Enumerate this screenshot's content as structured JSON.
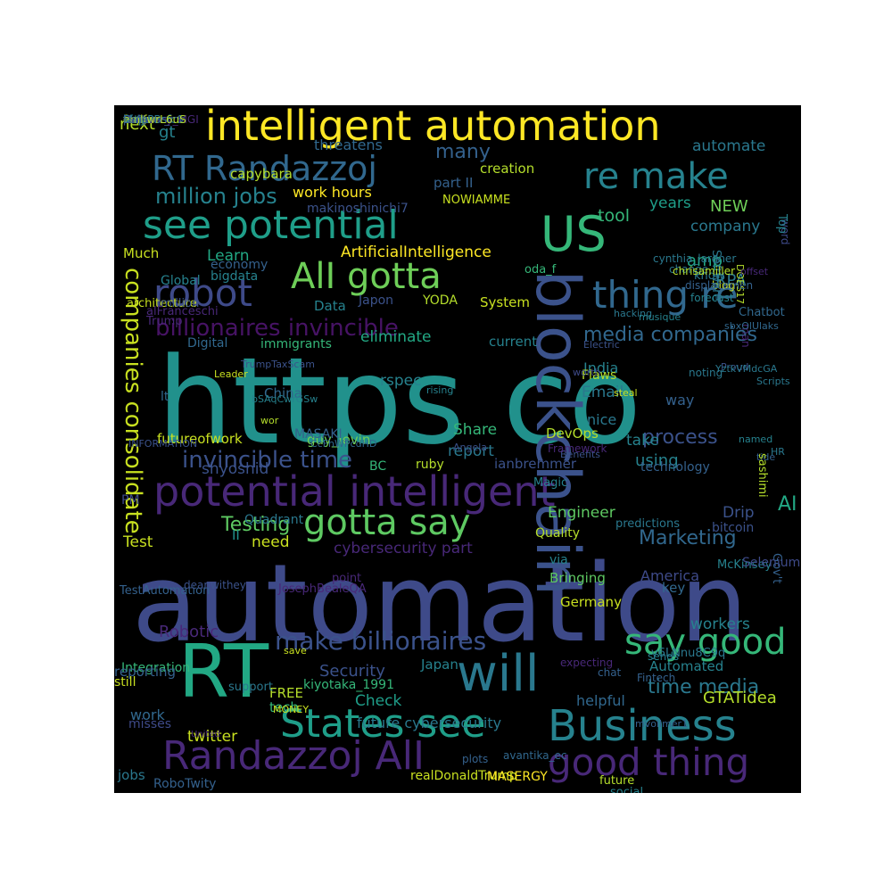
{
  "wordcloud": {
    "words": [
      {
        "text": "https co",
        "color": "#21918c"
      },
      {
        "text": "automation",
        "color": "#3e4a89"
      },
      {
        "text": "potential intelligent",
        "color": "#482878"
      },
      {
        "text": "intelligent automation",
        "color": "#fde725"
      },
      {
        "text": "blockchain",
        "color": "#3b528b"
      },
      {
        "text": "RT Randazzoj",
        "color": "#31688e"
      },
      {
        "text": "re make",
        "color": "#26828e"
      },
      {
        "text": "see potential",
        "color": "#1f9e89"
      },
      {
        "text": "US",
        "color": "#35b779"
      },
      {
        "text": "AlI gotta",
        "color": "#6ece58"
      },
      {
        "text": "robot",
        "color": "#3e4a89"
      },
      {
        "text": "thing re",
        "color": "#31688e"
      },
      {
        "text": "RT",
        "color": "#22a884"
      },
      {
        "text": "will",
        "color": "#2a788e"
      },
      {
        "text": "gotta say",
        "color": "#5ec962"
      },
      {
        "text": "States see",
        "color": "#1f9e89"
      },
      {
        "text": "Business",
        "color": "#26828e"
      },
      {
        "text": "Randazzoj AlI",
        "color": "#482878"
      },
      {
        "text": "good thing",
        "color": "#482878"
      },
      {
        "text": "say good",
        "color": "#35b779"
      },
      {
        "text": "make billionaires",
        "color": "#3b528b"
      },
      {
        "text": "companies consolidate",
        "color": "#c8e020"
      },
      {
        "text": "billionaires invincible",
        "color": "#471365"
      },
      {
        "text": "invincible time",
        "color": "#3b528b"
      },
      {
        "text": "media companies",
        "color": "#31688e"
      },
      {
        "text": "million jobs",
        "color": "#26828e"
      },
      {
        "text": "many",
        "color": "#34618d"
      },
      {
        "text": "process",
        "color": "#3b528b"
      },
      {
        "text": "time media",
        "color": "#2a788e"
      },
      {
        "text": "Marketing",
        "color": "#31688e"
      },
      {
        "text": "Testing",
        "color": "#5ec962"
      },
      {
        "text": "AI",
        "color": "#22a884"
      },
      {
        "text": "next",
        "color": "#b5de2b"
      },
      {
        "text": "gt",
        "color": "#26828e"
      },
      {
        "text": "threatens",
        "color": "#31688e"
      },
      {
        "text": "automate",
        "color": "#2a788e"
      },
      {
        "text": "creation",
        "color": "#b5de2b"
      },
      {
        "text": "capybara",
        "color": "#b5de2b"
      },
      {
        "text": "part II",
        "color": "#34618d"
      },
      {
        "text": "work hours",
        "color": "#fde725"
      },
      {
        "text": "makinoshinichi7",
        "color": "#3b528b"
      },
      {
        "text": "NOWIAMME",
        "color": "#c8e020"
      },
      {
        "text": "tool",
        "color": "#35b779"
      },
      {
        "text": "years",
        "color": "#1f9e89"
      },
      {
        "text": "NEW",
        "color": "#6ece58"
      },
      {
        "text": "company",
        "color": "#2a788e"
      },
      {
        "text": "ArtificialIntelligence",
        "color": "#fde725"
      },
      {
        "text": "Learn",
        "color": "#22a884"
      },
      {
        "text": "Much",
        "color": "#c8e020"
      },
      {
        "text": "economy",
        "color": "#34618d"
      },
      {
        "text": "amp",
        "color": "#22a884"
      },
      {
        "text": "RPA",
        "color": "#2a788e"
      },
      {
        "text": "Global",
        "color": "#26828e"
      },
      {
        "text": "bigdata",
        "color": "#26828e"
      },
      {
        "text": "Data",
        "color": "#26828e"
      },
      {
        "text": "Japon",
        "color": "#3b528b"
      },
      {
        "text": "YODA",
        "color": "#b5de2b"
      },
      {
        "text": "System",
        "color": "#c8e020"
      },
      {
        "text": "eliminate",
        "color": "#22a884"
      },
      {
        "text": "current",
        "color": "#26828e"
      },
      {
        "text": "Digital",
        "color": "#31688e"
      },
      {
        "text": "immigrants",
        "color": "#35b779"
      },
      {
        "text": "rspec",
        "color": "#26828e"
      },
      {
        "text": "China",
        "color": "#31688e"
      },
      {
        "text": "lt",
        "color": "#31688e"
      },
      {
        "text": "Email",
        "color": "#2a788e"
      },
      {
        "text": "nice",
        "color": "#2a788e"
      },
      {
        "text": "India",
        "color": "#26828e"
      },
      {
        "text": "Flaws",
        "color": "#b5de2b"
      },
      {
        "text": "way",
        "color": "#34618d"
      },
      {
        "text": "futureofwork",
        "color": "#c8e020"
      },
      {
        "text": "guy_levin",
        "color": "#6ece58"
      },
      {
        "text": "MASAKI",
        "color": "#34618d"
      },
      {
        "text": "Share",
        "color": "#35b779"
      },
      {
        "text": "report",
        "color": "#2a788e"
      },
      {
        "text": "DevOps",
        "color": "#b5de2b"
      },
      {
        "text": "take",
        "color": "#26828e"
      },
      {
        "text": "using",
        "color": "#26828e"
      },
      {
        "text": "technology",
        "color": "#34618d"
      },
      {
        "text": "BC",
        "color": "#35b779"
      },
      {
        "text": "ruby",
        "color": "#b5de2b"
      },
      {
        "text": "ianbremmer",
        "color": "#3b528b"
      },
      {
        "text": "shyoshid",
        "color": "#3b528b"
      },
      {
        "text": "Engineer",
        "color": "#5ec962"
      },
      {
        "text": "Drip",
        "color": "#3b528b"
      },
      {
        "text": "need",
        "color": "#c8e020"
      },
      {
        "text": "II",
        "color": "#21918c"
      },
      {
        "text": "Test",
        "color": "#c8e020"
      },
      {
        "text": "Quality",
        "color": "#b5de2b"
      },
      {
        "text": "cybersecurity part",
        "color": "#482878"
      },
      {
        "text": "via",
        "color": "#26828e"
      },
      {
        "text": "America",
        "color": "#3e4a89"
      },
      {
        "text": "bitcoin",
        "color": "#3b528b"
      },
      {
        "text": "Bringing",
        "color": "#5ec962"
      },
      {
        "text": "Germany",
        "color": "#c8e020"
      },
      {
        "text": "key",
        "color": "#31688e"
      },
      {
        "text": "Robotic",
        "color": "#482878"
      },
      {
        "text": "workers",
        "color": "#26828e"
      },
      {
        "text": "Security",
        "color": "#3b528b"
      },
      {
        "text": "kiyotaka_1991",
        "color": "#35b779"
      },
      {
        "text": "Japan",
        "color": "#26828e"
      },
      {
        "text": "FREE",
        "color": "#b5de2b"
      },
      {
        "text": "tech",
        "color": "#35b779"
      },
      {
        "text": "Check",
        "color": "#1f9e89"
      },
      {
        "text": "future cybersecurity",
        "color": "#2a788e"
      },
      {
        "text": "helpful",
        "color": "#31688e"
      },
      {
        "text": "Automated",
        "color": "#26828e"
      },
      {
        "text": "GTATidea",
        "color": "#b5de2b"
      },
      {
        "text": "twitter",
        "color": "#c8e020"
      },
      {
        "text": "work",
        "color": "#31688e"
      },
      {
        "text": "jobs",
        "color": "#2a788e"
      },
      {
        "text": "MONEY",
        "color": "#c8e020"
      },
      {
        "text": "realDonaldTrump",
        "color": "#c8e020"
      },
      {
        "text": "MASERGY",
        "color": "#fde725"
      },
      {
        "text": "future",
        "color": "#b5de2b"
      },
      {
        "text": "social",
        "color": "#26828e"
      },
      {
        "text": "RoboTwity",
        "color": "#34618d"
      },
      {
        "text": "Integration",
        "color": "#35b779"
      },
      {
        "text": "reporting",
        "color": "#34618d"
      },
      {
        "text": "still",
        "color": "#c8e020"
      },
      {
        "text": "misses",
        "color": "#3e4a89"
      },
      {
        "text": "support",
        "color": "#2a788e"
      },
      {
        "text": "chat",
        "color": "#34618d"
      },
      {
        "text": "Fintech",
        "color": "#34618d"
      },
      {
        "text": "plots",
        "color": "#34618d"
      },
      {
        "text": "avantika_ec",
        "color": "#31688e"
      },
      {
        "text": "mvollmer1",
        "color": "#34618d"
      },
      {
        "text": "XqFTOGCn4U",
        "color": "#3e4a89"
      },
      {
        "text": "United",
        "color": "#482878"
      },
      {
        "text": "sends",
        "color": "#26828e"
      },
      {
        "text": "expecting",
        "color": "#482878"
      },
      {
        "text": "y6LNnu8C9q",
        "color": "#2a788e"
      },
      {
        "text": "save",
        "color": "#c8e020"
      },
      {
        "text": "JosephBealeQA",
        "color": "#482878"
      },
      {
        "text": "point",
        "color": "#482878"
      },
      {
        "text": "TestAutomation",
        "color": "#34618d"
      },
      {
        "text": "Quadrant",
        "color": "#2a788e"
      },
      {
        "text": "deanwithey",
        "color": "#3b528b"
      },
      {
        "text": "PM",
        "color": "#3e4a89"
      },
      {
        "text": "INFORMATION",
        "color": "#3b528b"
      },
      {
        "text": "predictions",
        "color": "#2a788e"
      },
      {
        "text": "McKinsey",
        "color": "#26828e"
      },
      {
        "text": "Gov't",
        "color": "#34618d"
      },
      {
        "text": "Selenium",
        "color": "#3e4a89"
      },
      {
        "text": "Benefits",
        "color": "#3b528b"
      },
      {
        "text": "Magic",
        "color": "#26828e"
      },
      {
        "text": "Framework",
        "color": "#482878"
      },
      {
        "text": "Angela",
        "color": "#3b528b"
      },
      {
        "text": "CcFhWPcdHD",
        "color": "#31688e"
      },
      {
        "text": "wor",
        "color": "#b5de2b"
      },
      {
        "text": "Leader",
        "color": "#c8e020"
      },
      {
        "text": "TrumpTaxScam",
        "color": "#3b528b"
      },
      {
        "text": "rising",
        "color": "#26828e"
      },
      {
        "text": "bSAqCwrGSw",
        "color": "#26828e"
      },
      {
        "text": "Proud",
        "color": "#3b528b"
      },
      {
        "text": "steal",
        "color": "#c8e020"
      },
      {
        "text": "worth",
        "color": "#3e4a89"
      },
      {
        "text": "noting",
        "color": "#2a788e"
      },
      {
        "text": "man",
        "color": "#482878"
      },
      {
        "text": "tide",
        "color": "#34618d"
      },
      {
        "text": "Scripts",
        "color": "#2a788e"
      },
      {
        "text": "named",
        "color": "#26828e"
      },
      {
        "text": "sashimi",
        "color": "#b5de2b"
      },
      {
        "text": "HR",
        "color": "#2a788e"
      },
      {
        "text": "Electric",
        "color": "#3b528b"
      },
      {
        "text": "hacking",
        "color": "#2a788e"
      },
      {
        "text": "musique",
        "color": "#26828e"
      },
      {
        "text": "oda_f",
        "color": "#35b779"
      },
      {
        "text": "YztkVMdcGA",
        "color": "#2a788e"
      },
      {
        "text": "sbxOlUlaks",
        "color": "#31688e"
      },
      {
        "text": "Chatbot",
        "color": "#31688e"
      },
      {
        "text": "blog",
        "color": "#c8e020"
      },
      {
        "text": "Software",
        "color": "#2a788e"
      },
      {
        "text": "word",
        "color": "#3e4a89"
      },
      {
        "text": "Top",
        "color": "#26828e"
      },
      {
        "text": "DOES17",
        "color": "#b5de2b"
      },
      {
        "text": "offset",
        "color": "#482878"
      },
      {
        "text": "forecast",
        "color": "#26828e"
      },
      {
        "text": "change",
        "color": "#2a788e"
      },
      {
        "text": "know",
        "color": "#2a788e"
      },
      {
        "text": "displacemen",
        "color": "#34618d"
      },
      {
        "text": "cynthia_lardner",
        "color": "#2a788e"
      },
      {
        "text": "chrisamiller",
        "color": "#b5de2b"
      },
      {
        "text": "Trump",
        "color": "#482878"
      },
      {
        "text": "architecture",
        "color": "#c8e020"
      },
      {
        "text": "million",
        "color": "#3b528b"
      },
      {
        "text": "alFranceschi",
        "color": "#482878"
      },
      {
        "text": "Mckinsey_MGI",
        "color": "#482878"
      },
      {
        "text": "may",
        "color": "#26828e"
      },
      {
        "text": "force",
        "color": "#c8e020"
      },
      {
        "text": "Gartner_inc",
        "color": "#3b528b"
      },
      {
        "text": "Baker",
        "color": "#3b528b"
      },
      {
        "text": "post",
        "color": "#34618d"
      },
      {
        "text": "Reasons",
        "color": "#482878"
      },
      {
        "text": "https",
        "color": "#26828e"
      },
      {
        "text": "vh9rPBsfc6",
        "color": "#2a788e"
      },
      {
        "text": "State",
        "color": "#2a788e"
      },
      {
        "text": "life",
        "color": "#2a788e"
      },
      {
        "text": "easy",
        "color": "#3b528b"
      },
      {
        "text": "emlfwrL6uS",
        "color": "#b5de2b"
      },
      {
        "text": "Lens",
        "color": "#34618d"
      }
    ]
  }
}
